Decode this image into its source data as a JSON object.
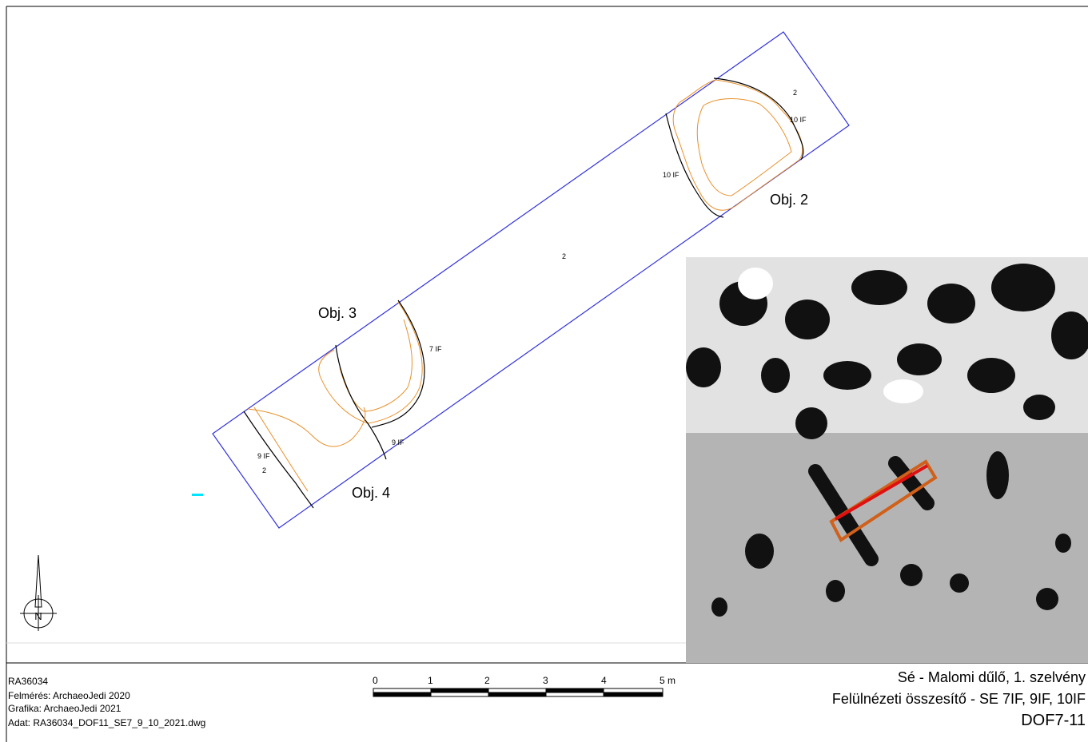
{
  "plan": {
    "trench_labels": [
      "2",
      "2",
      "2"
    ],
    "feature_labels": [
      "10 IF",
      "10 IF",
      "7 IF",
      "9 IF",
      "9 IF"
    ],
    "object_labels": [
      "Obj. 2",
      "Obj. 3",
      "Obj. 4"
    ],
    "north": "N"
  },
  "info_block": [
    "RA36034",
    "Felmérés: ArchaeoJedi 2020",
    "Grafika: ArchaeoJedi 2021",
    "Adat: RA36034_DOF11_SE7_9_10_2021.dwg"
  ],
  "scale_bar": {
    "labels": [
      "0",
      "1",
      "2",
      "3",
      "4",
      "5 m"
    ]
  },
  "title_block": {
    "site": "Sé - Malomi dűlő, 1. szelvény",
    "subtitle": "Felülnézeti összesítő - SE 7IF, 9IF, 10IF",
    "code": "DOF7-11"
  }
}
